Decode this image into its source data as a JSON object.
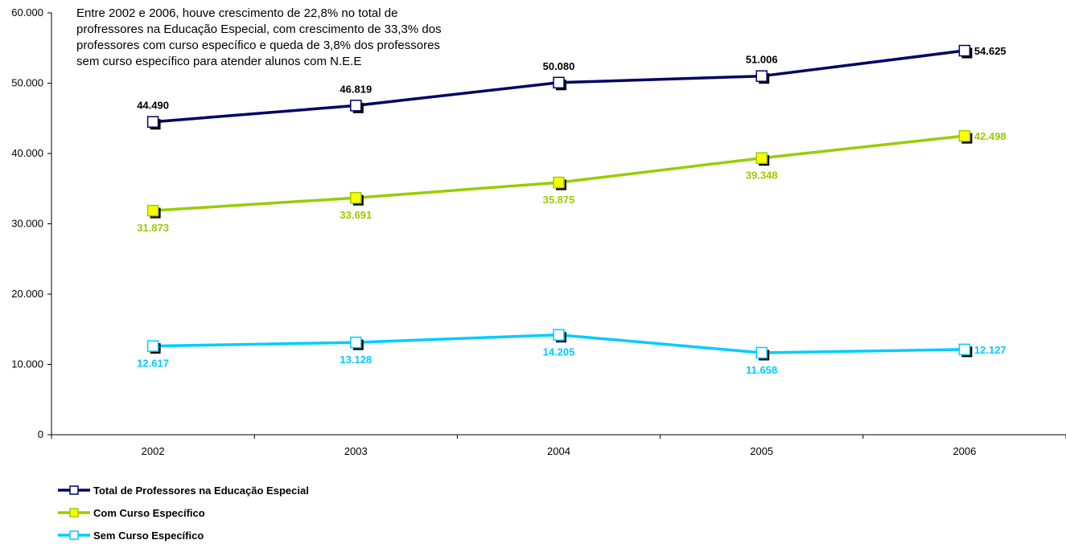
{
  "annotation": "Entre 2002 e 2006, houve crescimento de 22,8% no total de profressores na Educação Especial, com crescimento de 33,3% dos professores com curso específico e queda de 3,8% dos professores sem curso específico para atender alunos com N.E.E",
  "chart_data": {
    "type": "line",
    "categories": [
      "2002",
      "2003",
      "2004",
      "2005",
      "2006"
    ],
    "ylim": [
      0,
      60000
    ],
    "yticks": [
      0,
      10000,
      20000,
      30000,
      40000,
      50000,
      60000
    ],
    "ytick_labels": [
      "0",
      "10.000",
      "20.000",
      "30.000",
      "40.000",
      "50.000",
      "60.000"
    ],
    "grid": false,
    "legend_position": "bottom-left",
    "series": [
      {
        "name": "Total de Professores na Educação Especial",
        "values": [
          44490,
          46819,
          50080,
          51006,
          54625
        ],
        "labels": [
          "44.490",
          "46.819",
          "50.080",
          "51.006",
          "54.625"
        ],
        "line_color": "#000066",
        "marker_fill": "#ffffff",
        "label_color": "#000000",
        "label_positions": [
          "above",
          "above",
          "above",
          "above",
          "right"
        ]
      },
      {
        "name": "Com Curso Específico",
        "values": [
          31873,
          33691,
          35875,
          39348,
          42498
        ],
        "labels": [
          "31.873",
          "33.691",
          "35.875",
          "39.348",
          "42.498"
        ],
        "line_color": "#99CC00",
        "marker_fill": "#FFFF00",
        "label_color": "#99CC00",
        "label_positions": [
          "below",
          "below",
          "below",
          "below",
          "right"
        ]
      },
      {
        "name": "Sem Curso Específico",
        "values": [
          12617,
          13128,
          14205,
          11658,
          12127
        ],
        "labels": [
          "12.617",
          "13.128",
          "14.205",
          "11.658",
          "12.127"
        ],
        "line_color": "#00CCFF",
        "marker_fill": "#ffffff",
        "label_color": "#00CCFF",
        "label_positions": [
          "below",
          "below",
          "below",
          "below",
          "right"
        ]
      }
    ]
  }
}
